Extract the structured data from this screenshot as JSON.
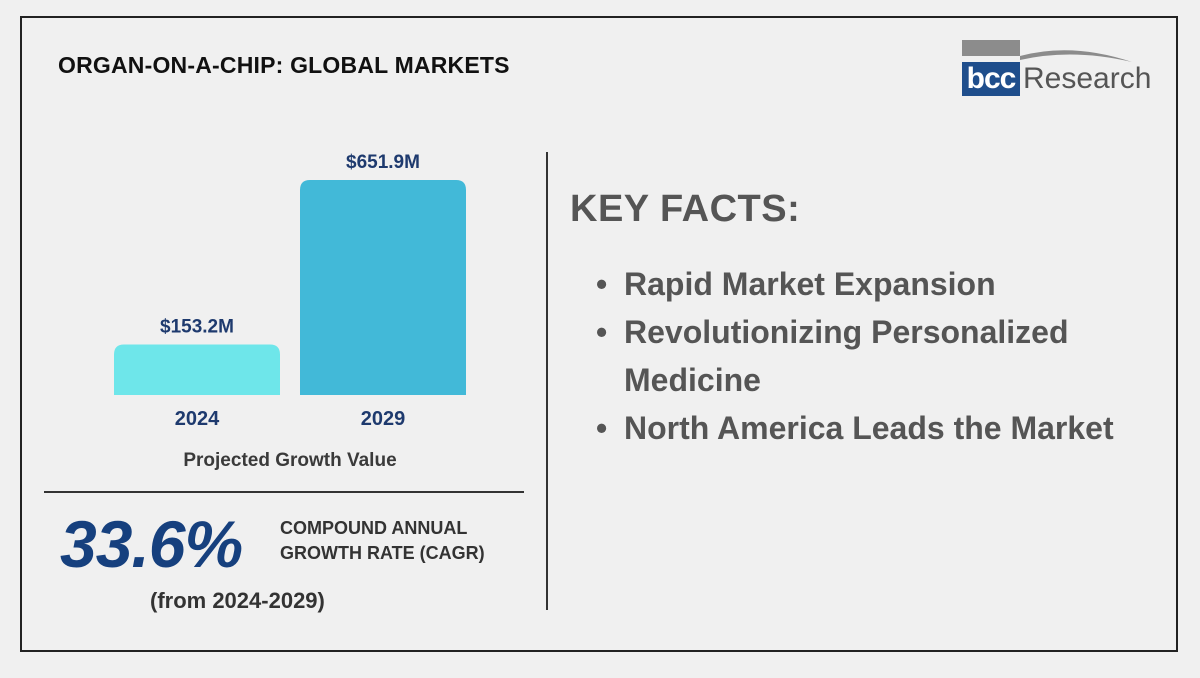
{
  "title": "ORGAN-ON-A-CHIP: GLOBAL MARKETS",
  "logo": {
    "left_text": "bcc",
    "right_text": "Research"
  },
  "chart_data": {
    "type": "bar",
    "categories": [
      "2024",
      "2029"
    ],
    "values": [
      153.2,
      651.9
    ],
    "value_labels": [
      "$153.2M",
      "$651.9M"
    ],
    "bar_colors": [
      "#6ee6ea",
      "#42b9d8"
    ],
    "label_color": "#1e3a6e",
    "caption": "Projected Growth Value",
    "ylim": [
      0,
      651.9
    ]
  },
  "cagr": {
    "value": "33.6%",
    "label_line1": "COMPOUND ANNUAL",
    "label_line2": "GROWTH RATE (CAGR)",
    "period": "(from 2024-2029)"
  },
  "key_facts": {
    "heading": "KEY FACTS:",
    "bullet": "•",
    "items": [
      "Rapid Market Expansion",
      "Revolutionizing Personalized Medicine",
      "North America Leads the Market"
    ]
  }
}
